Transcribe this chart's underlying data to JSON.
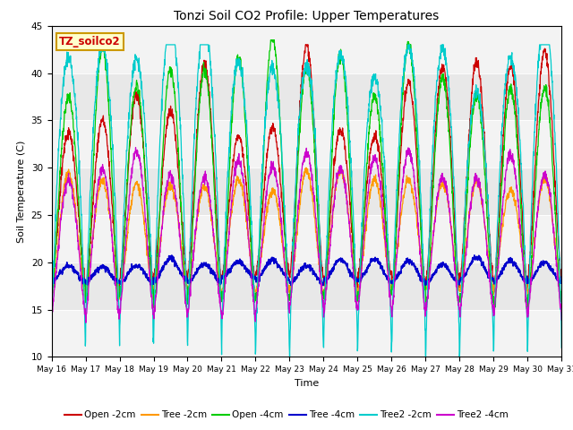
{
  "title": "Tonzi Soil CO2 Profile: Upper Temperatures",
  "xlabel": "Time",
  "ylabel": "Soil Temperature (C)",
  "ylim": [
    10,
    45
  ],
  "yticks": [
    10,
    15,
    20,
    25,
    30,
    35,
    40,
    45
  ],
  "background_color": "#ffffff",
  "plot_bg_color": "#e8e8e8",
  "series_colors": {
    "Open -2cm": "#cc0000",
    "Tree -2cm": "#ff9900",
    "Open -4cm": "#00cc00",
    "Tree -4cm": "#0000cc",
    "Tree2 -2cm": "#00cccc",
    "Tree2 -4cm": "#cc00cc"
  },
  "n_days": 15,
  "start_day": 16,
  "label_box_color": "#ffffcc",
  "label_box_edge": "#cc9900",
  "label_text": "TZ_soilco2",
  "label_text_color": "#cc0000",
  "figsize": [
    6.4,
    4.8
  ],
  "dpi": 100
}
